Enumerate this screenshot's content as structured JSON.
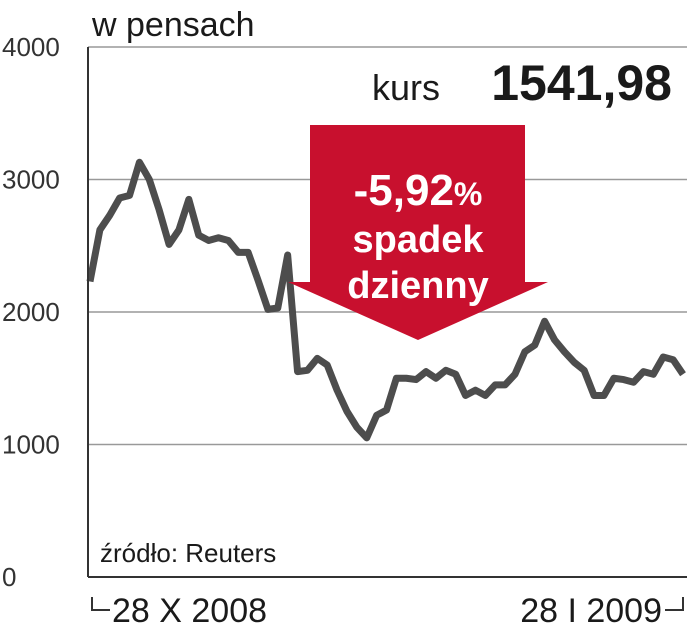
{
  "chart_data": {
    "type": "line",
    "title": "w pensach",
    "annotations": {
      "label": "kurs",
      "price": "1541,98",
      "change": "-5,92",
      "change_unit": "%",
      "line1": "spadek",
      "line2": "dzienny"
    },
    "source": "źródło: Reuters",
    "categories": [
      "28 X 2008",
      null,
      null,
      null,
      null,
      null,
      null,
      null,
      null,
      null,
      null,
      null,
      null,
      null,
      null,
      null,
      null,
      null,
      null,
      null,
      null,
      null,
      null,
      null,
      null,
      null,
      null,
      null,
      null,
      null,
      null,
      null,
      null,
      null,
      null,
      null,
      null,
      null,
      null,
      null,
      null,
      null,
      null,
      null,
      null,
      null,
      null,
      null,
      null,
      null,
      null,
      null,
      null,
      null,
      null,
      null,
      null,
      null,
      null,
      null,
      "28 I 2009"
    ],
    "series": [
      {
        "color": "#4d4d4d",
        "values": [
          2230,
          2620,
          2730,
          2860,
          2880,
          3130,
          3000,
          2770,
          2510,
          2620,
          2850,
          2580,
          2540,
          2560,
          2540,
          2450,
          2450,
          2240,
          2020,
          2030,
          2430,
          1550,
          1560,
          1650,
          1600,
          1410,
          1250,
          1130,
          1050,
          1220,
          1260,
          1500,
          1500,
          1490,
          1550,
          1500,
          1560,
          1530,
          1370,
          1410,
          1370,
          1450,
          1450,
          1530,
          1700,
          1750,
          1930,
          1790,
          1700,
          1620,
          1560,
          1370,
          1370,
          1500,
          1490,
          1470,
          1550,
          1530,
          1660,
          1640,
          1530
        ]
      }
    ],
    "ylim": [
      0,
      4000
    ],
    "yticks": [
      0,
      1000,
      2000,
      3000,
      4000
    ],
    "grid": true,
    "arrow_color": "#c8102e"
  }
}
